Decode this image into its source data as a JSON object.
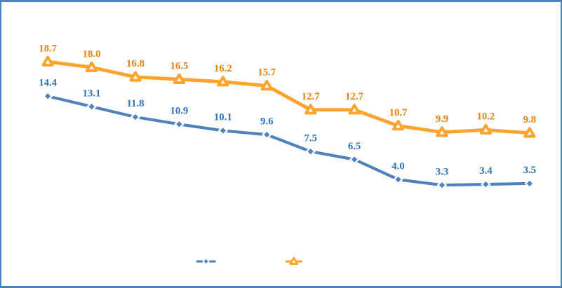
{
  "frame": {
    "border_color": "#4F81BD",
    "background": "#FFFFFF"
  },
  "chart_data": {
    "type": "line",
    "title": "",
    "xlabel": "",
    "ylabel": "",
    "grid": false,
    "axes_visible": false,
    "x_count": 12,
    "categories": [
      "",
      "",
      "",
      "",
      "",
      "",
      "",
      "",
      "",
      "",
      "",
      ""
    ],
    "series": [
      {
        "name": "blue-diamond-series",
        "marker": "diamond",
        "line_color": "#4F81BD",
        "label_color": "#2E74B5",
        "marker_fill": "#FFFFFF",
        "values": [
          14.4,
          13.1,
          11.8,
          10.9,
          10.1,
          9.6,
          7.5,
          6.5,
          4.0,
          3.3,
          3.4,
          3.5
        ],
        "labels": [
          "14.4",
          "13.1",
          "11.8",
          "10.9",
          "10.1",
          "9.6",
          "7.5",
          "6.5",
          "4.0",
          "3.3",
          "3.4",
          "3.5"
        ]
      },
      {
        "name": "orange-triangle-series",
        "marker": "triangle",
        "line_color": "#FFA42E",
        "label_color": "#E8820E",
        "marker_fill": "#FFFFFF",
        "values": [
          18.7,
          18.0,
          16.8,
          16.5,
          16.2,
          15.7,
          12.7,
          12.7,
          10.7,
          9.9,
          10.2,
          9.8
        ],
        "labels": [
          "18.7",
          "18.0",
          "16.8",
          "16.5",
          "16.2",
          "15.7",
          "12.7",
          "12.7",
          "10.7",
          "9.9",
          "10.2",
          "9.8"
        ]
      }
    ],
    "legend": {
      "position": "bottom-center",
      "items": [
        {
          "name": "blue-diamond-series",
          "marker": "diamond",
          "label": ""
        },
        {
          "name": "orange-triangle-series",
          "marker": "triangle",
          "label": ""
        }
      ]
    }
  }
}
